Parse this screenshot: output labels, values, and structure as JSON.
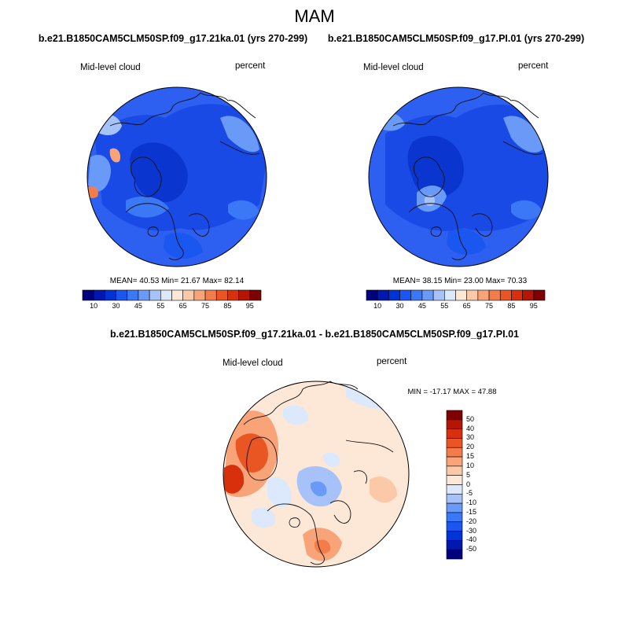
{
  "title": "MAM",
  "panels": [
    {
      "id": "left",
      "case": "b.e21.B1850CAM5CLM50SP.f09_g17.21ka.01 (yrs 270-299)",
      "variable": "Mid-level cloud",
      "units": "percent",
      "stats": "MEAN= 40.53  Min= 21.67  Max= 82.14"
    },
    {
      "id": "right",
      "case": "b.e21.B1850CAM5CLM50SP.f09_g17.PI.01 (yrs 270-299)",
      "variable": "Mid-level cloud",
      "units": "percent",
      "stats": "MEAN= 38.15  Min= 23.00  Max= 70.33"
    }
  ],
  "diff_panel": {
    "case": "b.e21.B1850CAM5CLM50SP.f09_g17.21ka.01 - b.e21.B1850CAM5CLM50SP.f09_g17.PI.01",
    "variable": "Mid-level cloud",
    "units": "percent",
    "minmax": "MIN = -17.17 MAX =  47.88"
  },
  "colorbar_horizontal": {
    "tick_labels": [
      "10",
      "30",
      "45",
      "55",
      "65",
      "75",
      "85",
      "95"
    ],
    "colors": [
      "#00007f",
      "#0018b0",
      "#0033d6",
      "#1a56f0",
      "#3a78f5",
      "#6a9af7",
      "#a6c2f9",
      "#dce8fb",
      "#fde8d8",
      "#fbc9a8",
      "#f8a478",
      "#f47b4a",
      "#ea5524",
      "#d8300c",
      "#b51505",
      "#7f0000"
    ]
  },
  "colorbar_vertical": {
    "tick_labels": [
      "50",
      "40",
      "30",
      "20",
      "15",
      "10",
      "5",
      "0",
      "-5",
      "-10",
      "-15",
      "-20",
      "-30",
      "-40",
      "-50"
    ],
    "colors": [
      "#7f0000",
      "#b51505",
      "#d8300c",
      "#ea5524",
      "#f47b4a",
      "#f8a478",
      "#fbc9a8",
      "#fde8d8",
      "#dce8fb",
      "#a6c2f9",
      "#6a9af7",
      "#3a78f5",
      "#1a56f0",
      "#0033d6",
      "#0018b0",
      "#00007f"
    ]
  }
}
